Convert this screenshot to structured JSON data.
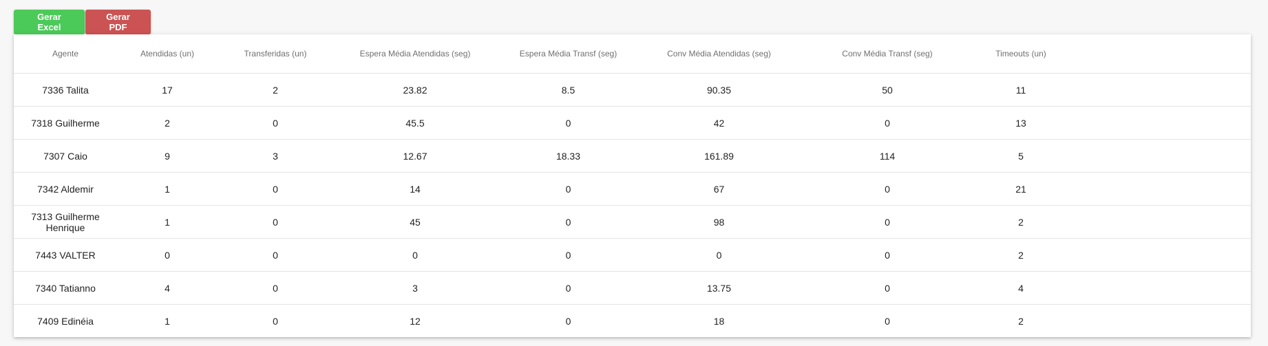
{
  "toolbar": {
    "excel_label": "Gerar Excel",
    "pdf_label": "Gerar PDF"
  },
  "colors": {
    "excel": "#4cca59",
    "pdf": "#cb5353"
  },
  "table": {
    "headers": [
      "Agente",
      "Atendidas (un)",
      "Transferidas (un)",
      "Espera Média Atendidas (seg)",
      "Espera Média Transf (seg)",
      "Conv Média Atendidas (seg)",
      "Conv Média Transf (seg)",
      "Timeouts (un)"
    ],
    "rows": [
      [
        "7336 Talita",
        "17",
        "2",
        "23.82",
        "8.5",
        "90.35",
        "50",
        "11"
      ],
      [
        "7318 Guilherme",
        "2",
        "0",
        "45.5",
        "0",
        "42",
        "0",
        "13"
      ],
      [
        "7307 Caio",
        "9",
        "3",
        "12.67",
        "18.33",
        "161.89",
        "114",
        "5"
      ],
      [
        "7342 Aldemir",
        "1",
        "0",
        "14",
        "0",
        "67",
        "0",
        "21"
      ],
      [
        "7313 Guilherme Henrique",
        "1",
        "0",
        "45",
        "0",
        "98",
        "0",
        "2"
      ],
      [
        "7443 VALTER",
        "0",
        "0",
        "0",
        "0",
        "0",
        "0",
        "2"
      ],
      [
        "7340 Tatianno",
        "4",
        "0",
        "3",
        "0",
        "13.75",
        "0",
        "4"
      ],
      [
        "7409 Edinéia",
        "1",
        "0",
        "12",
        "0",
        "18",
        "0",
        "2"
      ]
    ]
  }
}
